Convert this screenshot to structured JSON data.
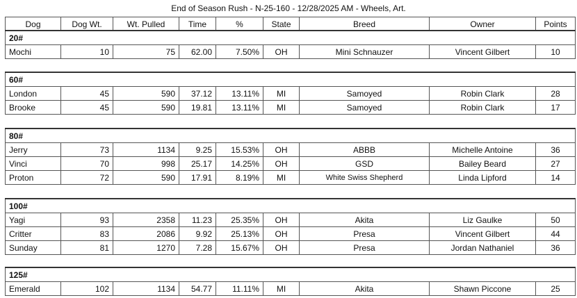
{
  "title": "End of Season Rush - N-25-160 - 12/28/2025 AM - Wheels, Art.",
  "columns": [
    "Dog",
    "Dog Wt.",
    "Wt. Pulled",
    "Time",
    "%",
    "State",
    "Breed",
    "Owner",
    "Points"
  ],
  "groups": [
    {
      "label": "20#",
      "rows": [
        [
          "Mochi",
          "10",
          "75",
          "62.00",
          "7.50%",
          "OH",
          "Mini Schnauzer",
          "Vincent Gilbert",
          "10"
        ]
      ]
    },
    {
      "label": "60#",
      "rows": [
        [
          "London",
          "45",
          "590",
          "37.12",
          "13.11%",
          "MI",
          "Samoyed",
          "Robin Clark",
          "28"
        ],
        [
          "Brooke",
          "45",
          "590",
          "19.81",
          "13.11%",
          "MI",
          "Samoyed",
          "Robin Clark",
          "17"
        ]
      ]
    },
    {
      "label": "80#",
      "rows": [
        [
          "Jerry",
          "73",
          "1134",
          "9.25",
          "15.53%",
          "OH",
          "ABBB",
          "Michelle Antoine",
          "36"
        ],
        [
          "Vinci",
          "70",
          "998",
          "25.17",
          "14.25%",
          "OH",
          "GSD",
          "Bailey Beard",
          "27"
        ],
        [
          "Proton",
          "72",
          "590",
          "17.91",
          "8.19%",
          "MI",
          "White Swiss Shepherd",
          "Linda Lipford",
          "14"
        ]
      ]
    },
    {
      "label": "100#",
      "rows": [
        [
          "Yagi",
          "93",
          "2358",
          "11.23",
          "25.35%",
          "OH",
          "Akita",
          "Liz Gaulke",
          "50"
        ],
        [
          "Critter",
          "83",
          "2086",
          "9.92",
          "25.13%",
          "OH",
          "Presa",
          "Vincent Gilbert",
          "44"
        ],
        [
          "Sunday",
          "81",
          "1270",
          "7.28",
          "15.67%",
          "OH",
          "Presa",
          "Jordan Nathaniel",
          "36"
        ]
      ]
    },
    {
      "label": "125#",
      "rows": [
        [
          "Emerald",
          "102",
          "1134",
          "54.77",
          "11.11%",
          "MI",
          "Akita",
          "Shawn Piccone",
          "25"
        ]
      ]
    }
  ]
}
